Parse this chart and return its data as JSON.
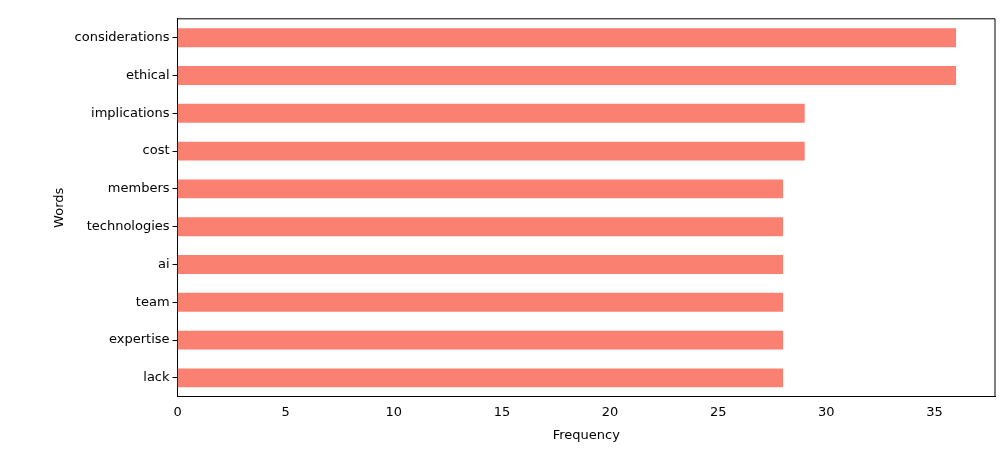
{
  "chart_data": {
    "type": "bar",
    "orientation": "horizontal",
    "xlabel": "Frequency",
    "ylabel": "Words",
    "categories": [
      "considerations",
      "ethical",
      "implications",
      "cost",
      "members",
      "technologies",
      "ai",
      "team",
      "expertise",
      "lack"
    ],
    "values": [
      36,
      36,
      29,
      29,
      28,
      28,
      28,
      28,
      28,
      28
    ],
    "color": "#fa8072",
    "xlim": [
      0,
      37.8
    ],
    "xticks": [
      0,
      5,
      10,
      15,
      20,
      25,
      30,
      35
    ],
    "grid": false,
    "legend": false
  }
}
